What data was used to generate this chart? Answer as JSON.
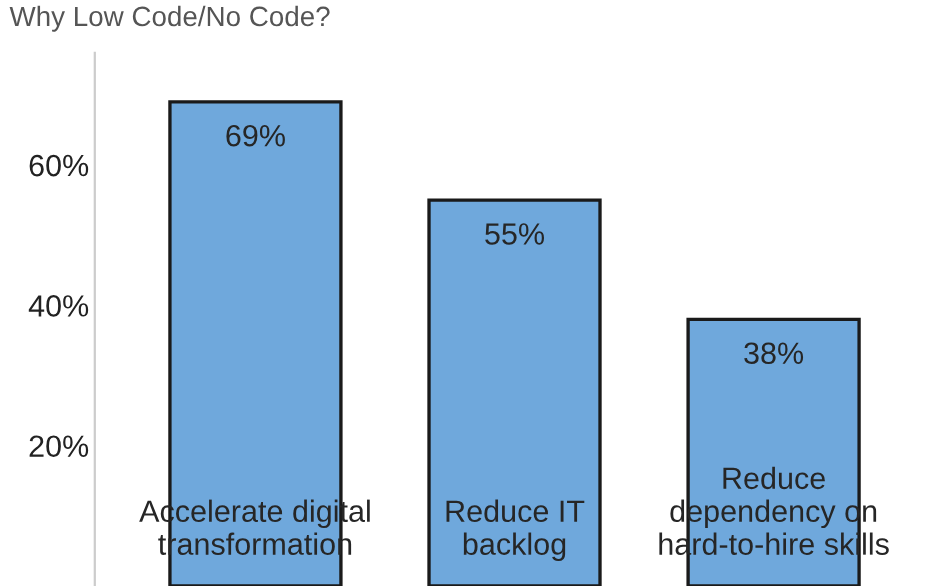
{
  "chart_data": {
    "type": "bar",
    "title": "Why Low Code/No Code?",
    "categories": [
      "Accelerate digital\ntransformation",
      "Reduce IT\nbacklog",
      "Reduce\ndependency on\nhard-to-hire skills"
    ],
    "values": [
      69,
      55,
      38
    ],
    "color": "#6fa8dc",
    "value_labels": [
      "69%",
      "55%",
      "38%"
    ],
    "ylim": [
      0,
      76
    ],
    "yticks": [
      {
        "value": 20,
        "label": "20%"
      },
      {
        "value": 40,
        "label": "40%"
      },
      {
        "value": 60,
        "label": "60%"
      }
    ],
    "grid": false
  }
}
